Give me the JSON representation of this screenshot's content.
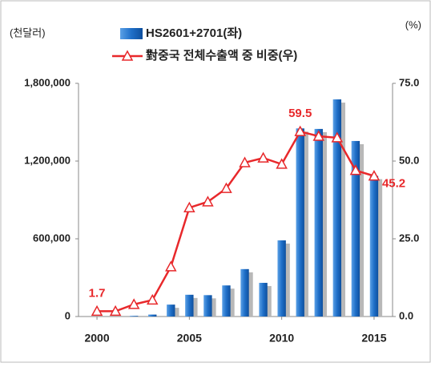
{
  "chart_data": {
    "type": "bar_line",
    "ylabel": "(천달러)",
    "y2label": "(%)",
    "x": [
      2000,
      2001,
      2002,
      2003,
      2004,
      2005,
      2006,
      2007,
      2008,
      2009,
      2010,
      2011,
      2012,
      2013,
      2014,
      2015
    ],
    "xlim": [
      1999,
      2016
    ],
    "xticks": [
      2000,
      2005,
      2010,
      2015
    ],
    "ylim": [
      0,
      1800000
    ],
    "yticks": [
      0,
      {
        "value": 600000,
        "label": "600,000"
      },
      {
        "value": 1200000,
        "label": "1,200,000"
      },
      {
        "value": 1800000,
        "label": "1,800,000"
      }
    ],
    "y2lim": [
      0,
      75
    ],
    "y2ticks": [
      {
        "value": 0,
        "label": "0.0"
      },
      {
        "value": 25,
        "label": "25.0"
      },
      {
        "value": 50,
        "label": "50.0"
      },
      {
        "value": 75,
        "label": "75.0"
      }
    ],
    "series": [
      {
        "name": "HS2601+2701(좌)",
        "type": "bar",
        "color": "#1f6fc8",
        "values": [
          0,
          0,
          5000,
          15000,
          92000,
          168000,
          165000,
          240000,
          366000,
          260000,
          588000,
          1452000,
          1448000,
          1676000,
          1355000,
          1085000
        ]
      },
      {
        "name": "對중국 전체수출액 중 비중(우)",
        "type": "line",
        "axis": "y2",
        "color": "#e8282b",
        "values": [
          1.7,
          1.7,
          3.9,
          5.3,
          16,
          35,
          36.9,
          41.2,
          49.5,
          51,
          49,
          59.5,
          58,
          57.5,
          47,
          45.2
        ],
        "value_labels": [
          "1.7",
          null,
          null,
          null,
          null,
          null,
          null,
          null,
          null,
          null,
          null,
          "59.5",
          null,
          null,
          null,
          "45.2"
        ]
      }
    ]
  }
}
